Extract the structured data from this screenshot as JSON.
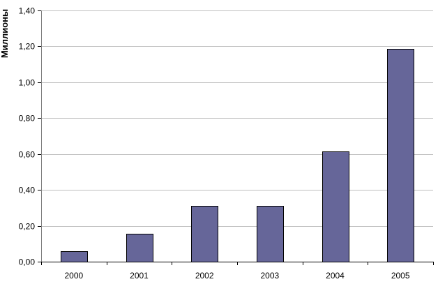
{
  "chart_data": {
    "type": "bar",
    "title": "",
    "xlabel": "",
    "ylabel": "Миллионы",
    "categories": [
      "2000",
      "2001",
      "2002",
      "2003",
      "2004",
      "2005"
    ],
    "values": [
      0.06,
      0.155,
      0.31,
      0.31,
      0.615,
      1.185
    ],
    "ylim": [
      0,
      1.4
    ],
    "yticks": [
      "0,00",
      "0,20",
      "0,40",
      "0,60",
      "0,80",
      "1,00",
      "1,20",
      "1,40"
    ],
    "grid": true,
    "legend": "none",
    "colors": {
      "bar": "#666699",
      "bar_border": "#000000",
      "grid": "#bfbfbf",
      "axis": "#808080"
    }
  }
}
